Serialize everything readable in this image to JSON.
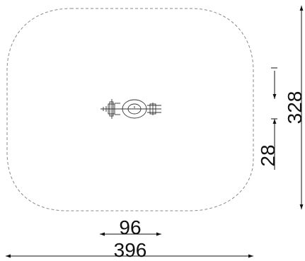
{
  "dimensions": {
    "overall_width": "396",
    "equipment_width": "96",
    "overall_depth": "328",
    "equipment_depth": "28"
  },
  "colors": {
    "zone_outline": "#8a8a8a",
    "dimension_line": "#111111",
    "equipment": "#333333"
  },
  "icons": {
    "equipment": "playground-spring-rider-top-view"
  }
}
